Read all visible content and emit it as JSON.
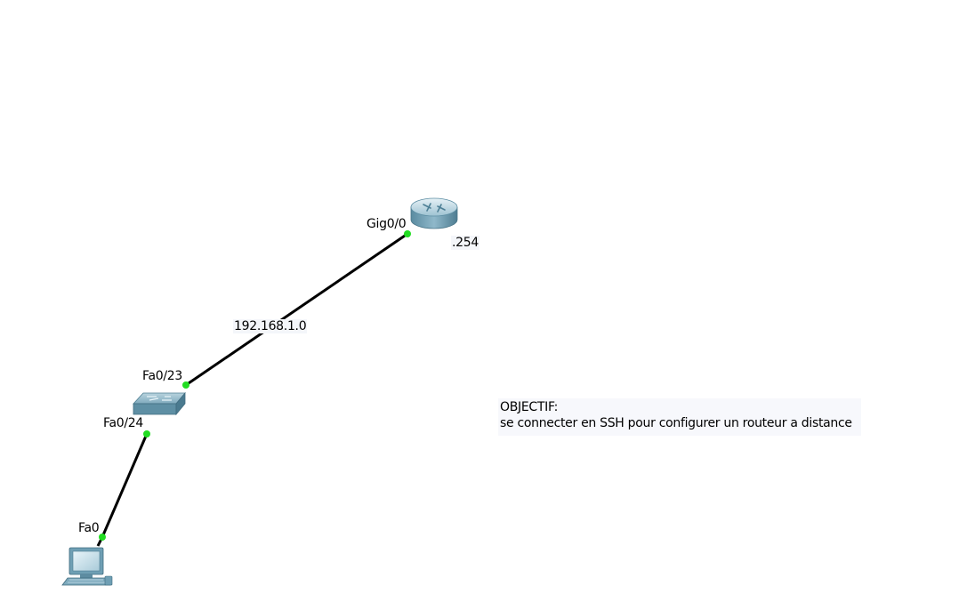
{
  "topology": {
    "devices": {
      "router": {
        "icon": "router-icon",
        "address_label": ".254"
      },
      "switch": {
        "icon": "switch-icon"
      },
      "pc": {
        "icon": "pc-icon"
      }
    },
    "interfaces": {
      "router_gig": "Gig0/0",
      "switch_uplink": "Fa0/23",
      "switch_downlink": "Fa0/24",
      "pc_port": "Fa0"
    },
    "network_label": "192.168.1.0"
  },
  "note": {
    "title": "OBJECTIF:",
    "text": "se connecter en SSH pour configurer un routeur a distance"
  },
  "colors": {
    "link": "#000000",
    "port_up": "#22dd22",
    "device_body": "#6f9fb4",
    "note_background": "#f7f8fc"
  }
}
